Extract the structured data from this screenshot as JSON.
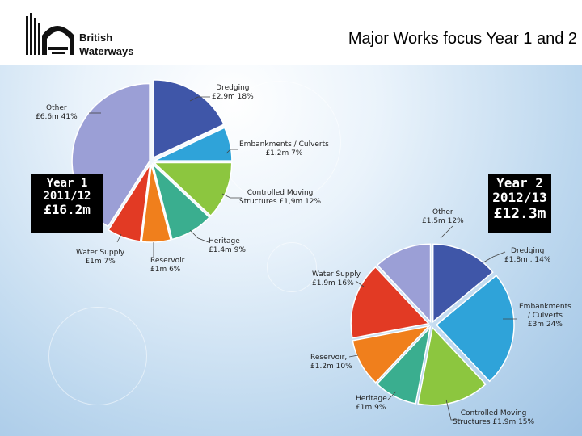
{
  "title": "Major Works focus Year 1 and 2",
  "logo": {
    "line1": "British",
    "line2": "Waterways"
  },
  "year1_box": {
    "line1": "Year 1",
    "line2": "2011/12",
    "line3": "£16.2m"
  },
  "year2_box": {
    "line1": "Year 2",
    "line2": "2012/13",
    "line3": "£12.3m"
  },
  "colors": {
    "dredging": "#3f56a8",
    "embankments": "#2fa3d9",
    "controlled_moving": "#8cc63f",
    "heritage": "#3aae8f",
    "reservoir": "#f07f1c",
    "water_supply": "#e23a24",
    "other": "#9b9fd6"
  },
  "chart_data": [
    {
      "type": "pie",
      "title": "Year 1 2011/12 £16.2m",
      "slices": [
        {
          "name": "Dredging",
          "value": 18,
          "amount": "£2.9m",
          "pct": "18%",
          "color": "#3f56a8"
        },
        {
          "name": "Embankments / Culverts",
          "value": 7,
          "amount": "£1.2m",
          "pct": "7%",
          "color": "#2fa3d9"
        },
        {
          "name": "Controlled Moving Structures",
          "value": 12,
          "amount": "£1,9m",
          "pct": "12%",
          "color": "#8cc63f"
        },
        {
          "name": "Heritage",
          "value": 9,
          "amount": "£1.4m",
          "pct": "9%",
          "color": "#3aae8f"
        },
        {
          "name": "Reservoir",
          "value": 6,
          "amount": "£1m",
          "pct": "6%",
          "color": "#f07f1c"
        },
        {
          "name": "Water Supply",
          "value": 7,
          "amount": "£1m",
          "pct": "7%",
          "color": "#e23a24"
        },
        {
          "name": "Other",
          "value": 41,
          "amount": "£6.6m",
          "pct": "41%",
          "color": "#9b9fd6"
        }
      ]
    },
    {
      "type": "pie",
      "title": "Year 2 2012/13 £12.3m",
      "slices": [
        {
          "name": "Dredging",
          "value": 14,
          "amount": "£1.8m",
          "pct": ", 14%",
          "color": "#3f56a8"
        },
        {
          "name": "Embankments / Culverts",
          "value": 24,
          "amount": "£3m",
          "pct": "24%",
          "color": "#2fa3d9"
        },
        {
          "name": "Controlled Moving Structures",
          "value": 15,
          "amount": "£1.9m",
          "pct": "15%",
          "color": "#8cc63f"
        },
        {
          "name": "Heritage",
          "value": 9,
          "amount": "£1m",
          "pct": "9%",
          "color": "#3aae8f"
        },
        {
          "name": "Reservoir,",
          "value": 10,
          "amount": "£1.2m",
          "pct": "10%",
          "color": "#f07f1c"
        },
        {
          "name": "Water Supply",
          "value": 16,
          "amount": "£1.9m",
          "pct": "16%",
          "color": "#e23a24"
        },
        {
          "name": "Other",
          "value": 12,
          "amount": "£1.5m",
          "pct": "12%",
          "color": "#9b9fd6"
        }
      ]
    }
  ],
  "labels1": {
    "dredging": {
      "name": "Dredging",
      "detail": "£2.9m   18%"
    },
    "embankments": {
      "name": "Embankments  / Culverts",
      "detail": "£1.2m   7%"
    },
    "controlled": {
      "name": "Controlled Moving",
      "detail": "Structures  £1,9m   12%"
    },
    "heritage": {
      "name": "Heritage",
      "detail": "£1.4m   9%"
    },
    "reservoir": {
      "name": "Reservoir",
      "detail": "£1m   6%"
    },
    "water": {
      "name": "Water Supply",
      "detail": "£1m   7%"
    },
    "other": {
      "name": "Other",
      "detail": "£6.6m   41%"
    }
  },
  "labels2": {
    "dredging": {
      "name": "Dredging",
      "detail": "£1.8m   , 14%"
    },
    "embankments": {
      "name": "Embankments",
      "detail": "/ Culverts",
      "detail2": "£3m   24%"
    },
    "controlled": {
      "name": "Controlled Moving",
      "detail": "Structures  £1.9m   15%"
    },
    "heritage": {
      "name": "Heritage",
      "detail": "£1m   9%"
    },
    "reservoir": {
      "name": "Reservoir,",
      "detail": "£1.2m  10%"
    },
    "water": {
      "name": "Water Supply",
      "detail": "£1.9m   16%"
    },
    "other": {
      "name": "Other",
      "detail": "£1.5m   12%"
    }
  }
}
